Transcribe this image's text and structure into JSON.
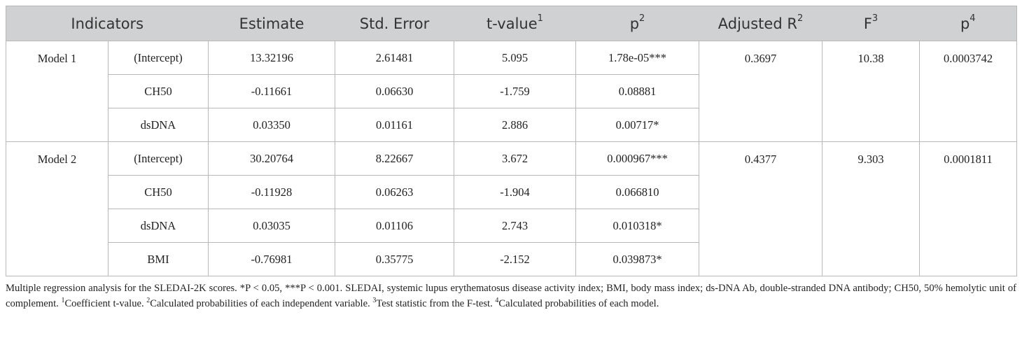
{
  "header": [
    {
      "text": "Indicators"
    },
    {
      "text": "Estimate"
    },
    {
      "text": "Std. Error"
    },
    {
      "text": "t-value",
      "sup": "1"
    },
    {
      "text": "p",
      "sup": "2"
    },
    {
      "text": "Adjusted R",
      "sup": "2"
    },
    {
      "text": "F",
      "sup": "3"
    },
    {
      "text": "p",
      "sup": "4"
    }
  ],
  "groups": [
    {
      "model": "Model 1",
      "adjusted_r2": "0.3697",
      "f": "10.38",
      "p": "0.0003742",
      "rows": [
        [
          "(Intercept)",
          "13.32196",
          "2.61481",
          "5.095",
          "1.78e-05***"
        ],
        [
          "CH50",
          "-0.11661",
          "0.06630",
          "-1.759",
          "0.08881"
        ],
        [
          "dsDNA",
          "0.03350",
          "0.01161",
          "2.886",
          "0.00717*"
        ]
      ]
    },
    {
      "model": "Model 2",
      "adjusted_r2": "0.4377",
      "f": "9.303",
      "p": "0.0001811",
      "rows": [
        [
          "(Intercept)",
          "30.20764",
          "8.22667",
          "3.672",
          "0.000967***"
        ],
        [
          "CH50",
          "-0.11928",
          "0.06263",
          "-1.904",
          "0.066810"
        ],
        [
          "dsDNA",
          "0.03035",
          "0.01106",
          "2.743",
          "0.010318*"
        ],
        [
          "BMI",
          "-0.76981",
          "0.35775",
          "-2.152",
          "0.039873*"
        ]
      ]
    }
  ],
  "footnote": [
    {
      "text": "Multiple regression analysis for the SLEDAI-2K scores. *P < 0.05, ***P < 0.001. SLEDAI, systemic lupus erythematosus disease activity index; BMI, body mass index; ds-DNA Ab, double-stranded DNA antibody; CH50, 50% hemolytic unit of complement. "
    },
    {
      "sup": "1",
      "text": "Coefficient t-value. "
    },
    {
      "sup": "2",
      "text": "Calculated probabilities of each independent variable. "
    },
    {
      "sup": "3",
      "text": "Test statistic from the F-test. "
    },
    {
      "sup": "4",
      "text": "Calculated probabilities of each model."
    }
  ]
}
